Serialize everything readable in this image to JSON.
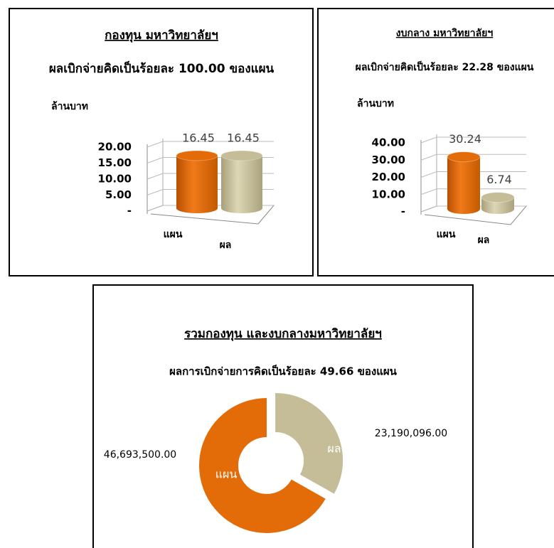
{
  "chart_data": [
    {
      "type": "bar",
      "title": "กองทุน มหาวิทยาลัยฯ",
      "subtitle": "ผลเบิกจ่ายคิดเป็นร้อยละ 100.00 ของแผน",
      "y_label": "ล้านบาท",
      "categories": [
        "แผน",
        "ผล"
      ],
      "values": [
        16.45,
        16.45
      ],
      "colors": [
        "#e36c09",
        "#c4bd97"
      ],
      "ylim": [
        0,
        20
      ],
      "yticks": [
        {
          "value": 0,
          "label": "-"
        },
        {
          "value": 5,
          "label": "5.00"
        },
        {
          "value": 10,
          "label": "10.00"
        },
        {
          "value": 15,
          "label": "15.00"
        },
        {
          "value": 20,
          "label": "20.00"
        }
      ],
      "grid": true
    },
    {
      "type": "bar",
      "title": "งบกลาง มหาวิทยาลัยฯ",
      "subtitle": "ผลเบิกจ่ายคิดเป็นร้อยละ 22.28 ของแผน",
      "y_label": "ล้านบาท",
      "categories": [
        "แผน",
        "ผล"
      ],
      "values": [
        30.24,
        6.74
      ],
      "colors": [
        "#e36c09",
        "#c4bd97"
      ],
      "ylim": [
        0,
        40
      ],
      "yticks": [
        {
          "value": 0,
          "label": "-"
        },
        {
          "value": 10,
          "label": "10.00"
        },
        {
          "value": 20,
          "label": "20.00"
        },
        {
          "value": 30,
          "label": "30.00"
        },
        {
          "value": 40,
          "label": "40.00"
        }
      ],
      "grid": true
    },
    {
      "type": "donut",
      "title": "รวมกองทุน และงบกลางมหาวิทยาลัยฯ",
      "subtitle": "ผลการเบิกจ่ายการคิดเป็นร้อยละ 49.66 ของแผน",
      "categories": [
        "แผน",
        "ผล"
      ],
      "values": [
        46693500,
        23190096
      ],
      "value_labels": [
        "46,693,500.00",
        "23,190,096.00"
      ],
      "colors": [
        "#e36c09",
        "#c4bd97"
      ]
    }
  ]
}
